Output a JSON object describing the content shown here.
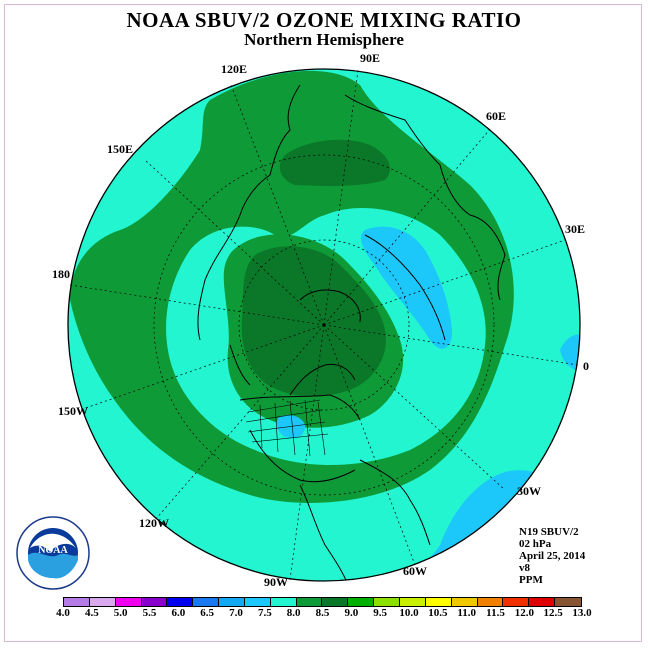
{
  "title": "NOAA SBUV/2 OZONE MIXING RATIO",
  "subtitle": "Northern Hemisphere",
  "meridian_labels": {
    "lon_120e": "120E",
    "lon_90e": "90E",
    "lon_60e": "60E",
    "lon_150e": "150E",
    "lon_30e": "30E",
    "lon_180": "180",
    "lon_0": "0",
    "lon_150w": "150W",
    "lon_30w": "30W",
    "lon_120w": "120W",
    "lon_60w": "60W",
    "lon_90w": "90W"
  },
  "info": {
    "instrument": "N19 SBUV/2",
    "level": "02 hPa",
    "date": "April 25, 2014",
    "version": "v8",
    "units": "PPM"
  },
  "logo": {
    "text": "NOAA",
    "ring_text": "NATIONAL OCEANIC AND ATMOSPHERIC ADMINISTRATION",
    "bottom_text": "U.S. DEPARTMENT OF COMMERCE"
  },
  "colorbar": {
    "labels": [
      "4.0",
      "4.5",
      "5.0",
      "5.5",
      "6.0",
      "6.5",
      "7.0",
      "7.5",
      "8.0",
      "8.5",
      "9.0",
      "9.5",
      "10.0",
      "10.5",
      "11.0",
      "11.5",
      "12.0",
      "12.5",
      "13.0"
    ],
    "colors": [
      "#b57ce8",
      "#d9a8ee",
      "#ee00ee",
      "#8800cc",
      "#0000ee",
      "#1a78f0",
      "#12a8f2",
      "#1cc8fa",
      "#22f5d0",
      "#0f9a38",
      "#0a7828",
      "#00b000",
      "#8ce000",
      "#c8f000",
      "#ffff00",
      "#f0c800",
      "#f08000",
      "#f03000",
      "#e00000",
      "#885533"
    ]
  },
  "map_legend": {
    "level_7_0": "#1cc8fa",
    "level_7_5": "#22f5d0",
    "level_8_0": "#0f9a38",
    "level_8_5": "#0a7828"
  }
}
